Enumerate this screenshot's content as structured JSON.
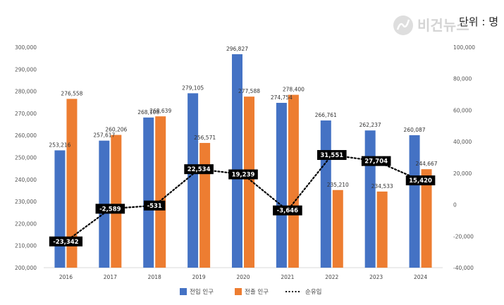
{
  "unit_label": "단위 : 명",
  "chart_data": {
    "type": "bar",
    "categories": [
      "2016",
      "2017",
      "2018",
      "2019",
      "2020",
      "2021",
      "2022",
      "2023",
      "2024"
    ],
    "series": [
      {
        "name": "전입 인구",
        "kind": "bar",
        "axis": "left",
        "color": "#4472C4",
        "values": [
          253216,
          257617,
          268108,
          279105,
          296827,
          274754,
          266761,
          262237,
          260087
        ],
        "labels": [
          "253,216",
          "257,617",
          "268,108",
          "279,105",
          "296,827",
          "274,754",
          "266,761",
          "262,237",
          "260,087"
        ]
      },
      {
        "name": "전출 인구",
        "kind": "bar",
        "axis": "left",
        "color": "#ED7D31",
        "values": [
          276558,
          260206,
          268639,
          256571,
          277588,
          278400,
          235210,
          234533,
          244667
        ],
        "labels": [
          "276,558",
          "260,206",
          "268,639",
          "256,571",
          "277,588",
          "278,400",
          "235,210",
          "234,533",
          "244,667"
        ]
      },
      {
        "name": "순유입",
        "kind": "line",
        "axis": "right",
        "color": "#000000",
        "style": "dotted",
        "values": [
          -23342,
          -2589,
          -531,
          22534,
          19239,
          -3646,
          31551,
          27704,
          15420
        ],
        "labels": [
          "-23,342",
          "-2,589",
          "-531",
          "22,534",
          "19,239",
          "-3,646",
          "31,551",
          "27,704",
          "15,420"
        ]
      }
    ],
    "left_axis": {
      "ylim": [
        200000,
        300000
      ],
      "ticks": [
        200000,
        210000,
        220000,
        230000,
        240000,
        250000,
        260000,
        270000,
        280000,
        290000,
        300000
      ],
      "tick_labels": [
        "200,000",
        "210,000",
        "220,000",
        "230,000",
        "240,000",
        "250,000",
        "260,000",
        "270,000",
        "280,000",
        "290,000",
        "300,000"
      ]
    },
    "right_axis": {
      "ylim": [
        -40000,
        100000
      ],
      "ticks": [
        -40000,
        -20000,
        0,
        20000,
        40000,
        60000,
        80000,
        100000
      ],
      "tick_labels": [
        "-40,000",
        "-20,000",
        "0",
        "20,000",
        "40,000",
        "60,000",
        "80,000",
        "100,000"
      ]
    },
    "legend_position": "bottom",
    "grid": false
  }
}
